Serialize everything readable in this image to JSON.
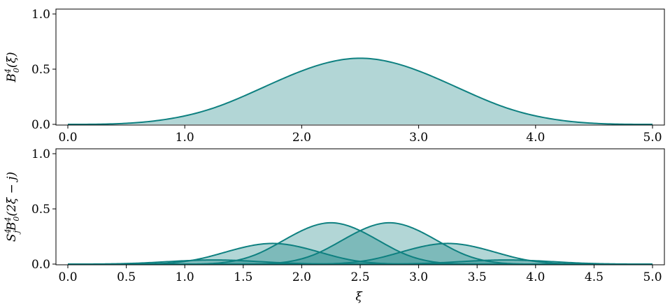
{
  "chart_data": [
    {
      "type": "area",
      "panel": "top",
      "ylabel": "B_0^4(ξ)",
      "xlabel": "",
      "xlim": [
        0.0,
        5.0
      ],
      "ylim": [
        0.0,
        1.0
      ],
      "xticks": [
        0.0,
        1.0,
        2.0,
        3.0,
        4.0,
        5.0
      ],
      "xtick_labels": [
        "0.0",
        "1.0",
        "2.0",
        "3.0",
        "4.0",
        "5.0"
      ],
      "yticks": [
        0.0,
        0.5,
        1.0
      ],
      "ytick_labels": [
        "0.0",
        "0.5",
        "1.0"
      ],
      "grid": false,
      "color": "#0e8080",
      "series": [
        {
          "x": [
            0.0,
            0.5,
            1.0,
            1.5,
            2.0,
            2.5,
            3.0,
            3.5,
            4.0,
            4.5,
            5.0
          ],
          "y": [
            0.0,
            0.0026,
            0.0417,
            0.1979,
            0.4583,
            0.599,
            0.4583,
            0.1979,
            0.0417,
            0.0026,
            0.0
          ]
        }
      ]
    },
    {
      "type": "area",
      "panel": "bottom",
      "ylabel": "S_j^4 B_0^4(2ξ − j)",
      "xlabel": "ξ",
      "xlim": [
        0.0,
        5.0
      ],
      "ylim": [
        0.0,
        1.0
      ],
      "xticks": [
        0.0,
        0.5,
        1.0,
        1.5,
        2.0,
        2.5,
        3.0,
        3.5,
        4.0,
        4.5,
        5.0
      ],
      "xtick_labels": [
        "0.0",
        "0.5",
        "1.0",
        "1.5",
        "2.0",
        "2.5",
        "3.0",
        "3.5",
        "4.0",
        "4.5",
        "5.0"
      ],
      "yticks": [
        0.0,
        0.5,
        1.0
      ],
      "ytick_labels": [
        "0.0",
        "0.5",
        "1.0"
      ],
      "grid": false,
      "color": "#0e8080",
      "series": [
        {
          "shift": 0,
          "coefficient": 0.0625
        },
        {
          "shift": 1,
          "coefficient": 0.3125
        },
        {
          "shift": 2,
          "coefficient": 0.625
        },
        {
          "shift": 3,
          "coefficient": 0.625
        },
        {
          "shift": 4,
          "coefficient": 0.3125
        },
        {
          "shift": 5,
          "coefficient": 0.0625
        }
      ]
    }
  ]
}
